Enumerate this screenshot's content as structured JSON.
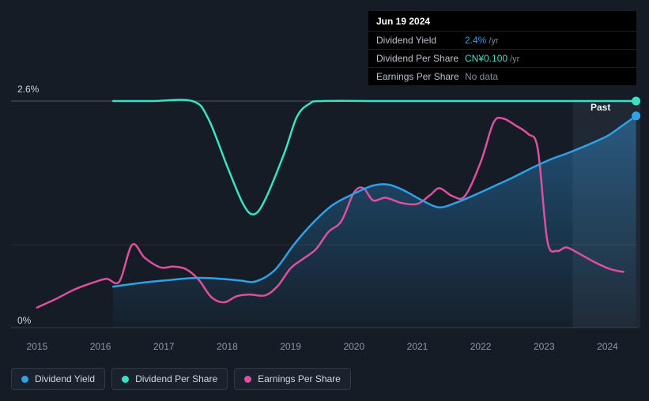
{
  "tooltip": {
    "date": "Jun 19 2024",
    "rows": [
      {
        "label": "Dividend Yield",
        "value": "2.4%",
        "suffix": " /yr",
        "color": "#2da2e8"
      },
      {
        "label": "Dividend Per Share",
        "value": "CN¥0.100",
        "suffix": " /yr",
        "color": "#3ae2c4"
      },
      {
        "label": "Earnings Per Share",
        "value": "No data",
        "suffix": "",
        "color": "#848e9a"
      }
    ]
  },
  "axis": {
    "y_top_label": "2.6%",
    "y_bottom_label": "0%"
  },
  "legend": [
    {
      "label": "Dividend Yield",
      "color": "#2da2e8"
    },
    {
      "label": "Dividend Per Share",
      "color": "#3ae2c4"
    },
    {
      "label": "Earnings Per Share",
      "color": "#de4f9d"
    }
  ],
  "chart_data": {
    "type": "line",
    "ylabel": "%",
    "ylim": [
      0,
      2.6
    ],
    "xlim": [
      2014.59,
      2024.48
    ],
    "x_ticks": [
      2015,
      2016,
      2017,
      2018,
      2019,
      2020,
      2021,
      2022,
      2023,
      2024
    ],
    "gridlines": [
      {
        "y": 2.6,
        "color": "#4e5965"
      },
      {
        "y": 0.95,
        "color": "rgba(255,255,255,0.07)"
      },
      {
        "y": 0,
        "color": "rgba(255,255,255,0.14)"
      }
    ],
    "past_band": {
      "start": 2023.45,
      "label": "Past",
      "fill": "rgba(173,199,228,0.07)"
    },
    "area_gradient": {
      "top": "rgba(45,148,220,0.45)",
      "bottom": "rgba(45,148,220,0.03)"
    },
    "series": [
      {
        "name": "Earnings Per Share",
        "color": "#de4f9d",
        "area": false,
        "end_dot": false,
        "points": [
          [
            2015.0,
            0.23
          ],
          [
            2015.3,
            0.33
          ],
          [
            2015.6,
            0.44
          ],
          [
            2015.9,
            0.52
          ],
          [
            2016.1,
            0.56
          ],
          [
            2016.3,
            0.53
          ],
          [
            2016.5,
            0.95
          ],
          [
            2016.7,
            0.8
          ],
          [
            2016.95,
            0.69
          ],
          [
            2017.15,
            0.7
          ],
          [
            2017.35,
            0.67
          ],
          [
            2017.55,
            0.55
          ],
          [
            2017.75,
            0.35
          ],
          [
            2017.95,
            0.29
          ],
          [
            2018.15,
            0.36
          ],
          [
            2018.35,
            0.38
          ],
          [
            2018.6,
            0.37
          ],
          [
            2018.8,
            0.48
          ],
          [
            2019.0,
            0.68
          ],
          [
            2019.2,
            0.79
          ],
          [
            2019.4,
            0.9
          ],
          [
            2019.6,
            1.1
          ],
          [
            2019.8,
            1.22
          ],
          [
            2020.0,
            1.55
          ],
          [
            2020.15,
            1.6
          ],
          [
            2020.3,
            1.46
          ],
          [
            2020.5,
            1.49
          ],
          [
            2020.75,
            1.43
          ],
          [
            2021.0,
            1.42
          ],
          [
            2021.2,
            1.52
          ],
          [
            2021.35,
            1.6
          ],
          [
            2021.55,
            1.51
          ],
          [
            2021.75,
            1.51
          ],
          [
            2022.0,
            1.9
          ],
          [
            2022.2,
            2.35
          ],
          [
            2022.35,
            2.4
          ],
          [
            2022.55,
            2.32
          ],
          [
            2022.75,
            2.22
          ],
          [
            2022.9,
            2.05
          ],
          [
            2023.05,
            1.0
          ],
          [
            2023.2,
            0.88
          ],
          [
            2023.35,
            0.92
          ],
          [
            2023.55,
            0.85
          ],
          [
            2023.8,
            0.75
          ],
          [
            2024.05,
            0.67
          ],
          [
            2024.25,
            0.64
          ]
        ]
      },
      {
        "name": "Dividend Yield",
        "color": "#2da2e8",
        "area": true,
        "end_dot": true,
        "points": [
          [
            2016.2,
            0.47
          ],
          [
            2016.6,
            0.51
          ],
          [
            2017.0,
            0.54
          ],
          [
            2017.5,
            0.57
          ],
          [
            2017.9,
            0.56
          ],
          [
            2018.2,
            0.54
          ],
          [
            2018.45,
            0.53
          ],
          [
            2018.75,
            0.66
          ],
          [
            2019.05,
            0.95
          ],
          [
            2019.35,
            1.2
          ],
          [
            2019.65,
            1.4
          ],
          [
            2019.95,
            1.52
          ],
          [
            2020.3,
            1.63
          ],
          [
            2020.55,
            1.64
          ],
          [
            2020.8,
            1.57
          ],
          [
            2021.1,
            1.45
          ],
          [
            2021.35,
            1.38
          ],
          [
            2021.6,
            1.43
          ],
          [
            2021.9,
            1.52
          ],
          [
            2022.2,
            1.62
          ],
          [
            2022.5,
            1.72
          ],
          [
            2022.8,
            1.83
          ],
          [
            2023.1,
            1.93
          ],
          [
            2023.4,
            2.01
          ],
          [
            2023.7,
            2.1
          ],
          [
            2024.0,
            2.2
          ],
          [
            2024.2,
            2.3
          ],
          [
            2024.45,
            2.43
          ]
        ]
      },
      {
        "name": "Dividend Per Share",
        "color": "#3ae2c4",
        "area": false,
        "end_dot": true,
        "points": [
          [
            2016.2,
            2.6
          ],
          [
            2016.8,
            2.6
          ],
          [
            2017.45,
            2.6
          ],
          [
            2017.7,
            2.4
          ],
          [
            2018.0,
            1.85
          ],
          [
            2018.25,
            1.42
          ],
          [
            2018.42,
            1.3
          ],
          [
            2018.6,
            1.47
          ],
          [
            2018.9,
            2.0
          ],
          [
            2019.1,
            2.42
          ],
          [
            2019.3,
            2.57
          ],
          [
            2019.5,
            2.6
          ],
          [
            2020.5,
            2.6
          ],
          [
            2022.0,
            2.6
          ],
          [
            2023.2,
            2.6
          ],
          [
            2024.45,
            2.6
          ]
        ]
      }
    ]
  }
}
